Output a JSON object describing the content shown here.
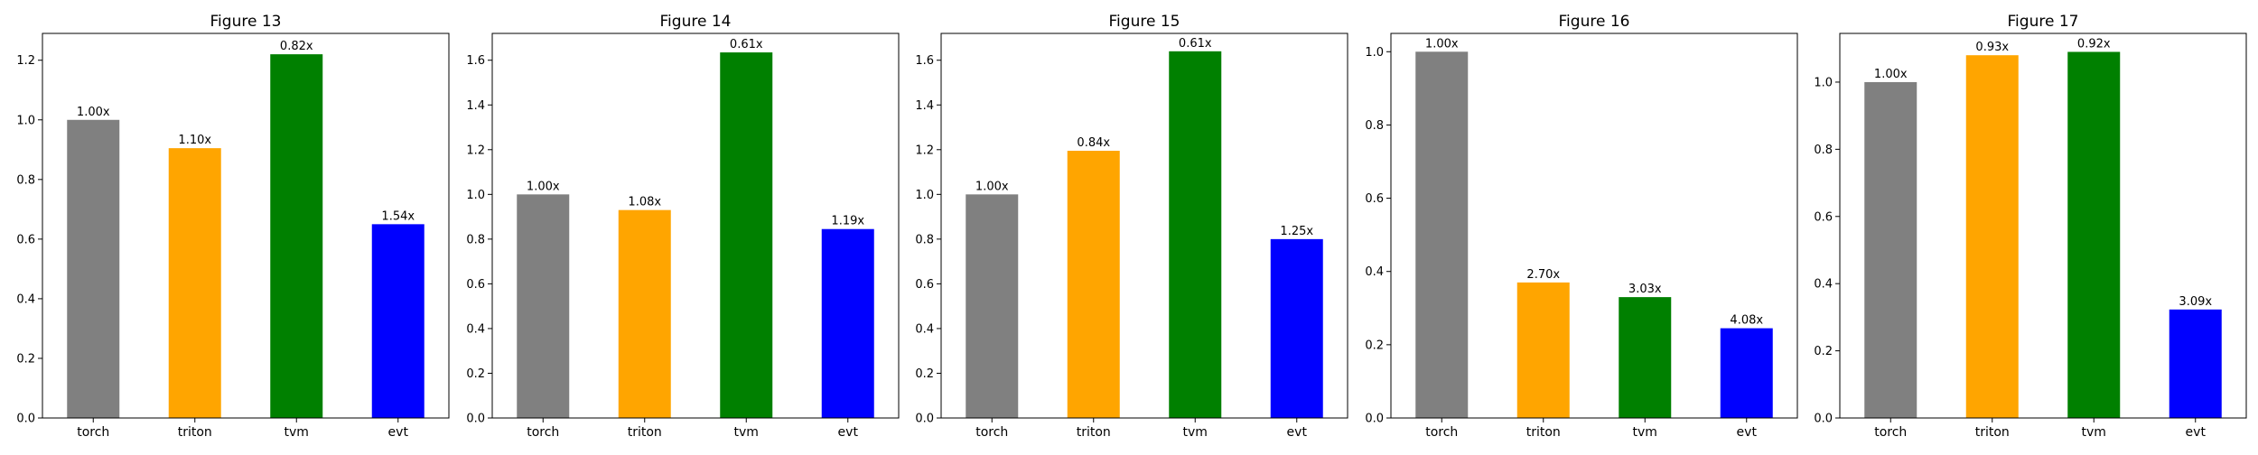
{
  "chart_data": [
    {
      "type": "bar",
      "title": "Figure 13",
      "categories": [
        "torch",
        "triton",
        "tvm",
        "evt"
      ],
      "values": [
        1.0,
        0.905,
        1.22,
        0.65
      ],
      "bar_labels": [
        "1.00x",
        "1.10x",
        "0.82x",
        "1.54x"
      ],
      "colors": [
        "#808080",
        "#ffa500",
        "#008000",
        "#0000ff"
      ],
      "ylim": [
        0,
        1.29
      ],
      "yticks": [
        0.0,
        0.2,
        0.4,
        0.6,
        0.8,
        1.0,
        1.2
      ],
      "ytick_labels": [
        "0.0",
        "0.2",
        "0.4",
        "0.6",
        "0.8",
        "1.0",
        "1.2"
      ],
      "xlabel": "",
      "ylabel": "",
      "grid": false,
      "legend": "none"
    },
    {
      "type": "bar",
      "title": "Figure 14",
      "categories": [
        "torch",
        "triton",
        "tvm",
        "evt"
      ],
      "values": [
        1.0,
        0.93,
        1.635,
        0.845
      ],
      "bar_labels": [
        "1.00x",
        "1.08x",
        "0.61x",
        "1.19x"
      ],
      "colors": [
        "#808080",
        "#ffa500",
        "#008000",
        "#0000ff"
      ],
      "ylim": [
        0,
        1.72
      ],
      "yticks": [
        0.0,
        0.2,
        0.4,
        0.6,
        0.8,
        1.0,
        1.2,
        1.4,
        1.6
      ],
      "ytick_labels": [
        "0.0",
        "0.2",
        "0.4",
        "0.6",
        "0.8",
        "1.0",
        "1.2",
        "1.4",
        "1.6"
      ],
      "xlabel": "",
      "ylabel": "",
      "grid": false,
      "legend": "none"
    },
    {
      "type": "bar",
      "title": "Figure 15",
      "categories": [
        "torch",
        "triton",
        "tvm",
        "evt"
      ],
      "values": [
        1.0,
        1.195,
        1.64,
        0.8
      ],
      "bar_labels": [
        "1.00x",
        "0.84x",
        "0.61x",
        "1.25x"
      ],
      "colors": [
        "#808080",
        "#ffa500",
        "#008000",
        "#0000ff"
      ],
      "ylim": [
        0,
        1.72
      ],
      "yticks": [
        0.0,
        0.2,
        0.4,
        0.6,
        0.8,
        1.0,
        1.2,
        1.4,
        1.6
      ],
      "ytick_labels": [
        "0.0",
        "0.2",
        "0.4",
        "0.6",
        "0.8",
        "1.0",
        "1.2",
        "1.4",
        "1.6"
      ],
      "xlabel": "",
      "ylabel": "",
      "grid": false,
      "legend": "none"
    },
    {
      "type": "bar",
      "title": "Figure 16",
      "categories": [
        "torch",
        "triton",
        "tvm",
        "evt"
      ],
      "values": [
        1.0,
        0.37,
        0.33,
        0.245
      ],
      "bar_labels": [
        "1.00x",
        "2.70x",
        "3.03x",
        "4.08x"
      ],
      "colors": [
        "#808080",
        "#ffa500",
        "#008000",
        "#0000ff"
      ],
      "ylim": [
        0,
        1.05
      ],
      "yticks": [
        0.0,
        0.2,
        0.4,
        0.6,
        0.8,
        1.0
      ],
      "ytick_labels": [
        "0.0",
        "0.2",
        "0.4",
        "0.6",
        "0.8",
        "1.0"
      ],
      "xlabel": "",
      "ylabel": "",
      "grid": false,
      "legend": "none"
    },
    {
      "type": "bar",
      "title": "Figure 17",
      "categories": [
        "torch",
        "triton",
        "tvm",
        "evt"
      ],
      "values": [
        1.0,
        1.08,
        1.09,
        0.323
      ],
      "bar_labels": [
        "1.00x",
        "0.93x",
        "0.92x",
        "3.09x"
      ],
      "colors": [
        "#808080",
        "#ffa500",
        "#008000",
        "#0000ff"
      ],
      "ylim": [
        0,
        1.145
      ],
      "yticks": [
        0.0,
        0.2,
        0.4,
        0.6,
        0.8,
        1.0
      ],
      "ytick_labels": [
        "0.0",
        "0.2",
        "0.4",
        "0.6",
        "0.8",
        "1.0"
      ],
      "xlabel": "",
      "ylabel": "",
      "grid": false,
      "legend": "none"
    }
  ]
}
